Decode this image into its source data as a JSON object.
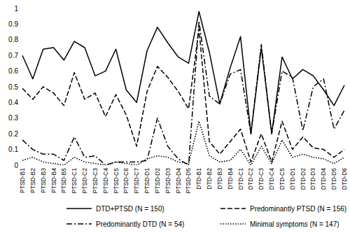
{
  "chart_data": {
    "type": "line",
    "categories": [
      "PTSD-B1",
      "PTSD-B2",
      "PTSD-B3",
      "PTSD-B4",
      "PTSD-B5",
      "PTSD-C1",
      "PTSD-C2",
      "PTSD-C3",
      "PTSD-C4",
      "PTSD-C5",
      "PTSD-C6",
      "PTSD-C7",
      "PTSD-D1",
      "PTSD-D2",
      "PTSD-D3",
      "PTSD-D4",
      "PTSD-D5",
      "DTD-B1",
      "DTD-B2",
      "DTD-B3",
      "DTD-B4",
      "DTD-C1",
      "DTD-C2",
      "DTD-C3",
      "DTD-C4",
      "DTD-C5",
      "DTD-D1",
      "DTD-D2",
      "DTD-D3",
      "DTD-D4",
      "DTD-D5",
      "DTD-D6"
    ],
    "series": [
      {
        "name": "DTD+PTSD (N = 150)",
        "color": "#000000",
        "line_style": "solid",
        "values": [
          0.7,
          0.55,
          0.74,
          0.75,
          0.67,
          0.79,
          0.75,
          0.57,
          0.6,
          0.74,
          0.48,
          0.4,
          0.73,
          0.88,
          0.78,
          0.69,
          0.65,
          0.98,
          0.72,
          0.39,
          0.62,
          0.82,
          0.2,
          0.75,
          0.2,
          0.69,
          0.55,
          0.61,
          0.57,
          0.48,
          0.38,
          0.51
        ]
      },
      {
        "name": "Predominantly PTSD (N = 156)",
        "color": "#000000",
        "line_style": "dashed",
        "values": [
          0.49,
          0.42,
          0.5,
          0.46,
          0.38,
          0.59,
          0.42,
          0.46,
          0.31,
          0.45,
          0.32,
          0.12,
          0.47,
          0.63,
          0.56,
          0.47,
          0.36,
          0.87,
          0.15,
          0.07,
          0.15,
          0.23,
          0.02,
          0.2,
          0.02,
          0.28,
          0.1,
          0.18,
          0.11,
          0.1,
          0.05,
          0.1
        ]
      },
      {
        "name": "Predominantly DTD (N = 54)",
        "color": "#000000",
        "line_style": "dashdot",
        "values": [
          0.16,
          0.1,
          0.07,
          0.07,
          0.03,
          0.18,
          0.05,
          0.06,
          0.0,
          0.02,
          0.02,
          0.02,
          0.03,
          0.3,
          0.12,
          0.04,
          0.0,
          0.92,
          0.44,
          0.39,
          0.58,
          0.61,
          0.2,
          0.77,
          0.2,
          0.6,
          0.56,
          0.22,
          0.5,
          0.55,
          0.23,
          0.35
        ]
      },
      {
        "name": "Minimal symptoms (N = 147)",
        "color": "#000000",
        "line_style": "dotted",
        "values": [
          0.03,
          0.05,
          0.02,
          0.01,
          0.0,
          0.05,
          0.02,
          0.01,
          0.0,
          0.02,
          0.01,
          0.0,
          0.04,
          0.06,
          0.05,
          0.02,
          0.01,
          0.28,
          0.06,
          0.02,
          0.03,
          0.1,
          0.0,
          0.12,
          0.01,
          0.16,
          0.05,
          0.07,
          0.05,
          0.04,
          0.01,
          0.05
        ]
      }
    ],
    "ylim": [
      0,
      1
    ],
    "yticks": [
      0,
      0.1,
      0.2,
      0.3,
      0.4,
      0.5,
      0.6,
      0.7,
      0.8,
      0.9,
      1
    ],
    "grid": false,
    "legend": "bottom"
  }
}
